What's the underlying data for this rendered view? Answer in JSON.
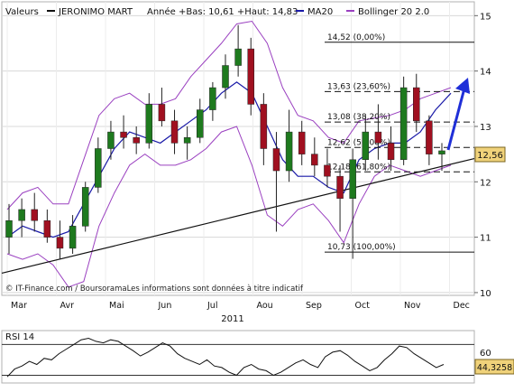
{
  "header": {
    "label_valeurs": "Valeurs",
    "stock_name": "JERONIMO MART",
    "year_info": "Année +Bas: 10,61 +Haut: 14,83",
    "ma_label": "MA20",
    "bollinger_label": "Bollinger 20 2.0"
  },
  "footer_credit": "© IT-Finance.com / BoursoramaLes informations sont données à titre indicatif",
  "year_label": "2011",
  "colors": {
    "up": "#1e7a1e",
    "down": "#a01020",
    "ma": "#1a1aa8",
    "bollinger": "#9a40c0",
    "arrow": "#1f2fd8",
    "price_box": "#f0d27a"
  },
  "chart_data": [
    {
      "type": "candlestick",
      "title": "JERONIMO MART",
      "x_labels": [
        "Mar",
        "Avr",
        "Mai",
        "Jun",
        "Jul",
        "Aou",
        "Sep",
        "Oct",
        "Nov",
        "Dec"
      ],
      "ylim": [
        9.95,
        15.25
      ],
      "y_ticks": [
        10,
        11,
        12,
        13,
        14,
        15
      ],
      "y_tick_labels": [
        "10",
        "11",
        "12",
        "13",
        "14",
        "15"
      ],
      "last_price": "12,56",
      "series": [
        {
          "name": "MA20",
          "color": "#1a1aa8",
          "values": [
            11.0,
            11.2,
            11.1,
            11.0,
            11.1,
            11.6,
            12.1,
            12.6,
            12.9,
            12.8,
            12.7,
            12.9,
            13.1,
            13.3,
            13.6,
            13.8,
            13.6,
            13.0,
            12.4,
            12.1,
            12.1,
            11.9,
            11.8,
            12.4,
            12.6,
            12.7,
            12.7,
            12.9,
            13.3,
            13.6
          ]
        },
        {
          "name": "Bollinger 20 2.0 upper",
          "color": "#9a40c0",
          "values": [
            11.5,
            11.8,
            11.9,
            11.6,
            11.6,
            12.4,
            13.2,
            13.5,
            13.6,
            13.4,
            13.4,
            13.5,
            13.9,
            14.2,
            14.5,
            14.85,
            14.9,
            14.5,
            13.7,
            13.2,
            13.1,
            12.8,
            12.7,
            13.1,
            13.15,
            13.2,
            13.3,
            13.5,
            13.6,
            13.7
          ]
        },
        {
          "name": "Bollinger 20 2.0 lower",
          "color": "#9a40c0",
          "values": [
            10.7,
            10.6,
            10.7,
            10.5,
            10.1,
            10.2,
            11.2,
            11.8,
            12.3,
            12.5,
            12.3,
            12.3,
            12.4,
            12.6,
            12.9,
            13.0,
            12.3,
            11.4,
            11.2,
            11.5,
            11.6,
            11.3,
            10.9,
            11.6,
            12.1,
            12.3,
            12.2,
            12.1,
            12.2,
            12.3
          ]
        }
      ],
      "trendline": {
        "from": [
          0,
          10.35
        ],
        "to": [
          29.5,
          12.42
        ]
      },
      "fibonacci_levels": [
        {
          "label": "14,52 (0,00%)",
          "value": 14.52,
          "style": "solid"
        },
        {
          "label": "13,63 (23,60%)",
          "value": 13.63,
          "style": "dashed"
        },
        {
          "label": "13,08 (38,20%)",
          "value": 13.08,
          "style": "dashed"
        },
        {
          "label": "12,62 (50,00%)",
          "value": 12.62,
          "style": "dashed"
        },
        {
          "label": "12,18 (61,80%)",
          "value": 12.18,
          "style": "dashed"
        },
        {
          "label": "10,73 (100,00%)",
          "value": 10.73,
          "style": "solid"
        }
      ],
      "candles": [
        {
          "o": 11.0,
          "h": 11.6,
          "l": 10.7,
          "c": 11.3
        },
        {
          "o": 11.3,
          "h": 11.7,
          "l": 11.0,
          "c": 11.5
        },
        {
          "o": 11.5,
          "h": 11.8,
          "l": 11.1,
          "c": 11.3
        },
        {
          "o": 11.3,
          "h": 11.5,
          "l": 10.9,
          "c": 11.0
        },
        {
          "o": 11.0,
          "h": 11.3,
          "l": 10.6,
          "c": 10.8
        },
        {
          "o": 10.8,
          "h": 11.4,
          "l": 10.7,
          "c": 11.2
        },
        {
          "o": 11.2,
          "h": 12.0,
          "l": 11.1,
          "c": 11.9
        },
        {
          "o": 11.9,
          "h": 12.8,
          "l": 11.8,
          "c": 12.6
        },
        {
          "o": 12.6,
          "h": 13.1,
          "l": 12.4,
          "c": 12.9
        },
        {
          "o": 12.9,
          "h": 13.2,
          "l": 12.6,
          "c": 12.8
        },
        {
          "o": 12.8,
          "h": 13.0,
          "l": 12.5,
          "c": 12.7
        },
        {
          "o": 12.7,
          "h": 13.6,
          "l": 12.6,
          "c": 13.4
        },
        {
          "o": 13.4,
          "h": 13.7,
          "l": 13.0,
          "c": 13.1
        },
        {
          "o": 13.1,
          "h": 13.3,
          "l": 12.5,
          "c": 12.7
        },
        {
          "o": 12.7,
          "h": 13.0,
          "l": 12.4,
          "c": 12.8
        },
        {
          "o": 12.8,
          "h": 13.5,
          "l": 12.7,
          "c": 13.3
        },
        {
          "o": 13.3,
          "h": 13.8,
          "l": 13.1,
          "c": 13.7
        },
        {
          "o": 13.7,
          "h": 14.3,
          "l": 13.5,
          "c": 14.1
        },
        {
          "o": 14.1,
          "h": 14.83,
          "l": 13.9,
          "c": 14.4
        },
        {
          "o": 14.4,
          "h": 14.6,
          "l": 13.2,
          "c": 13.4
        },
        {
          "o": 13.4,
          "h": 13.6,
          "l": 12.3,
          "c": 12.6
        },
        {
          "o": 12.6,
          "h": 12.9,
          "l": 11.1,
          "c": 12.2
        },
        {
          "o": 12.2,
          "h": 13.3,
          "l": 12.0,
          "c": 12.9
        },
        {
          "o": 12.9,
          "h": 13.1,
          "l": 12.3,
          "c": 12.5
        },
        {
          "o": 12.5,
          "h": 12.8,
          "l": 12.1,
          "c": 12.3
        },
        {
          "o": 12.3,
          "h": 12.6,
          "l": 11.9,
          "c": 12.1
        },
        {
          "o": 12.1,
          "h": 12.3,
          "l": 11.1,
          "c": 11.7
        },
        {
          "o": 11.7,
          "h": 12.6,
          "l": 10.61,
          "c": 12.4
        },
        {
          "o": 12.4,
          "h": 13.2,
          "l": 12.2,
          "c": 12.9
        },
        {
          "o": 12.9,
          "h": 13.4,
          "l": 12.4,
          "c": 12.7
        },
        {
          "o": 12.7,
          "h": 13.0,
          "l": 12.2,
          "c": 12.4
        },
        {
          "o": 12.4,
          "h": 13.9,
          "l": 12.3,
          "c": 13.7
        },
        {
          "o": 13.7,
          "h": 13.95,
          "l": 12.9,
          "c": 13.1
        },
        {
          "o": 13.1,
          "h": 13.2,
          "l": 12.3,
          "c": 12.5
        },
        {
          "o": 12.5,
          "h": 12.7,
          "l": 12.2,
          "c": 12.56
        }
      ]
    },
    {
      "type": "line",
      "title": "RSI 14",
      "ylim": [
        20,
        88
      ],
      "y_ticks": [
        60
      ],
      "y_tick_labels": [
        "60"
      ],
      "reference_lines": [
        30,
        70
      ],
      "last_value": "44,3258",
      "series": [
        {
          "name": "RSI 14",
          "color": "#111111",
          "values": [
            28,
            38,
            42,
            48,
            44,
            52,
            50,
            58,
            64,
            70,
            76,
            78,
            74,
            72,
            76,
            74,
            68,
            62,
            55,
            60,
            66,
            72,
            68,
            58,
            52,
            48,
            44,
            50,
            42,
            40,
            34,
            30,
            40,
            44,
            38,
            36,
            30,
            34,
            40,
            46,
            50,
            44,
            40,
            54,
            60,
            62,
            56,
            48,
            42,
            36,
            40,
            50,
            58,
            68,
            66,
            58,
            52,
            46,
            40,
            44
          ]
        }
      ]
    }
  ]
}
